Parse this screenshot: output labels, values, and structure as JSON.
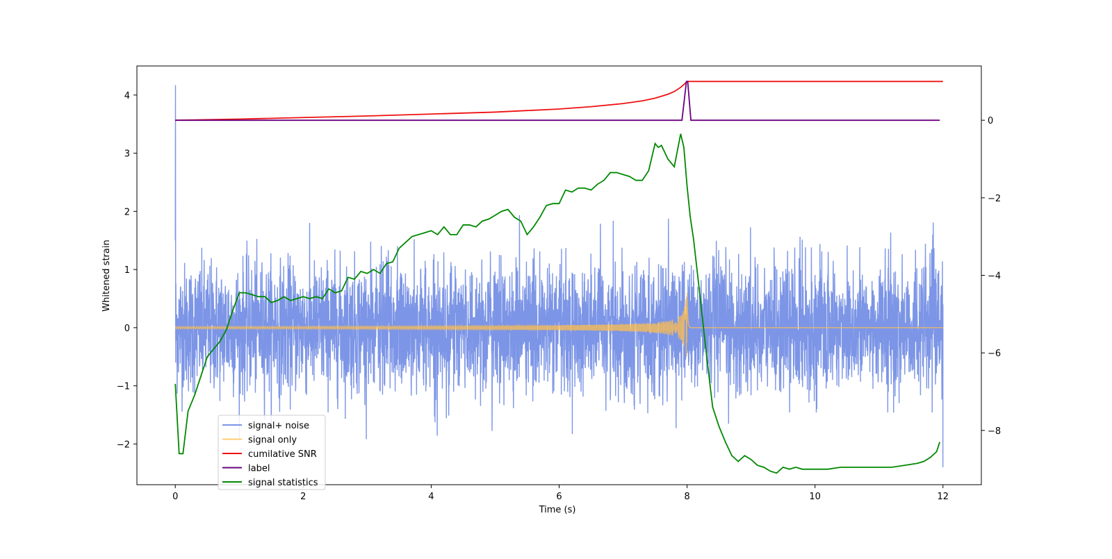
{
  "chart_data": {
    "type": "line",
    "title": "",
    "xlabel": "Time (s)",
    "ylabel": "Whitened strain",
    "y2label": "",
    "xlim": [
      -0.6,
      12.6
    ],
    "ylim": [
      -2.7,
      4.5
    ],
    "y2lim": [
      -9.4,
      1.4
    ],
    "xticks": [
      0,
      2,
      4,
      6,
      8,
      10,
      12
    ],
    "yticks": [
      -2,
      -1,
      0,
      1,
      2,
      3,
      4
    ],
    "y2ticks": [
      -8,
      -6,
      -4,
      -2,
      0
    ],
    "grid": false,
    "legend_position": "lower-left",
    "series": [
      {
        "name": "signal+ noise",
        "axis": "left",
        "color": "#5b7be0",
        "style": "noise",
        "x_range": [
          0,
          12
        ],
        "typical_amplitude": 0.55,
        "peak_range": [
          -2.4,
          4.17
        ],
        "spike_at_start": 4.17
      },
      {
        "name": "signal only",
        "axis": "left",
        "color": "#ffbf4d",
        "style": "chirp",
        "x_range": [
          0,
          12
        ],
        "merger_time": 8.0,
        "peak_amplitude": 0.6,
        "start_amplitude": 0.02
      },
      {
        "name": "cumilative SNR",
        "axis": "right",
        "color": "#ee1111",
        "x": [
          0,
          1,
          2,
          3,
          4,
          5,
          5.5,
          6,
          6.5,
          7,
          7.3,
          7.5,
          7.7,
          7.8,
          7.9,
          7.95,
          8.0,
          8.05,
          12
        ],
        "y": [
          0.0,
          0.03,
          0.07,
          0.11,
          0.16,
          0.21,
          0.25,
          0.29,
          0.35,
          0.43,
          0.5,
          0.57,
          0.67,
          0.74,
          0.85,
          0.92,
          1.0,
          1.0,
          1.0
        ]
      },
      {
        "name": "label",
        "axis": "right",
        "color": "#6a0080",
        "x": [
          0,
          7.92,
          7.99,
          8.01,
          8.06,
          11.95
        ],
        "y": [
          0,
          0,
          1.0,
          1.0,
          0,
          0
        ]
      },
      {
        "name": "signal statistics",
        "axis": "right",
        "color": "#008800",
        "x": [
          0,
          0.06,
          0.12,
          0.2,
          0.3,
          0.4,
          0.5,
          0.6,
          0.7,
          0.8,
          0.9,
          1.0,
          1.1,
          1.2,
          1.3,
          1.4,
          1.5,
          1.6,
          1.7,
          1.8,
          1.9,
          2.0,
          2.1,
          2.2,
          2.3,
          2.4,
          2.5,
          2.6,
          2.7,
          2.8,
          2.9,
          3.0,
          3.1,
          3.2,
          3.3,
          3.4,
          3.5,
          3.6,
          3.7,
          3.8,
          3.9,
          4.0,
          4.1,
          4.2,
          4.3,
          4.4,
          4.5,
          4.6,
          4.7,
          4.8,
          4.9,
          5.0,
          5.1,
          5.2,
          5.3,
          5.4,
          5.5,
          5.6,
          5.7,
          5.8,
          5.9,
          6.0,
          6.1,
          6.2,
          6.3,
          6.4,
          6.5,
          6.6,
          6.7,
          6.8,
          6.9,
          7.0,
          7.1,
          7.2,
          7.3,
          7.4,
          7.5,
          7.55,
          7.6,
          7.7,
          7.8,
          7.9,
          7.95,
          8.0,
          8.05,
          8.1,
          8.2,
          8.3,
          8.4,
          8.5,
          8.6,
          8.7,
          8.8,
          8.9,
          9.0,
          9.1,
          9.2,
          9.3,
          9.4,
          9.5,
          9.6,
          9.7,
          9.8,
          9.9,
          10.0,
          10.2,
          10.4,
          10.6,
          10.8,
          11.0,
          11.2,
          11.4,
          11.6,
          11.7,
          11.8,
          11.9,
          11.95
        ],
        "y": [
          -6.8,
          -8.6,
          -8.6,
          -7.5,
          -7.1,
          -6.6,
          -6.1,
          -5.9,
          -5.7,
          -5.4,
          -4.9,
          -4.45,
          -4.45,
          -4.5,
          -4.55,
          -4.55,
          -4.7,
          -4.65,
          -4.55,
          -4.65,
          -4.6,
          -4.55,
          -4.6,
          -4.55,
          -4.6,
          -4.35,
          -4.45,
          -4.4,
          -4.05,
          -4.1,
          -3.9,
          -3.95,
          -3.85,
          -3.95,
          -3.7,
          -3.65,
          -3.3,
          -3.15,
          -3.0,
          -2.95,
          -2.9,
          -2.85,
          -2.95,
          -2.75,
          -2.95,
          -2.95,
          -2.7,
          -2.7,
          -2.75,
          -2.6,
          -2.55,
          -2.45,
          -2.35,
          -2.3,
          -2.5,
          -2.6,
          -2.95,
          -2.75,
          -2.5,
          -2.2,
          -2.15,
          -2.15,
          -1.8,
          -1.85,
          -1.75,
          -1.75,
          -1.8,
          -1.65,
          -1.55,
          -1.35,
          -1.35,
          -1.4,
          -1.45,
          -1.55,
          -1.55,
          -1.3,
          -0.6,
          -0.7,
          -0.65,
          -1.0,
          -1.2,
          -0.35,
          -0.7,
          -1.7,
          -2.5,
          -3.05,
          -4.5,
          -6.0,
          -7.4,
          -7.9,
          -8.3,
          -8.65,
          -8.8,
          -8.65,
          -8.75,
          -8.9,
          -8.95,
          -9.05,
          -9.1,
          -8.95,
          -9.0,
          -8.95,
          -9.0,
          -9.0,
          -9.0,
          -9.0,
          -8.95,
          -8.95,
          -8.95,
          -8.95,
          -8.95,
          -8.9,
          -8.85,
          -8.8,
          -8.7,
          -8.55,
          -8.3
        ]
      }
    ]
  }
}
